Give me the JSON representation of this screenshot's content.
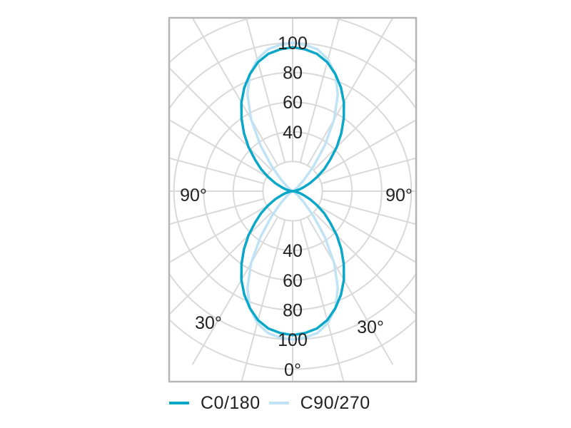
{
  "chart_data": {
    "type": "polar-line",
    "title": "",
    "radial_ticks": [
      "40",
      "60",
      "80",
      "100"
    ],
    "radial_max": 100,
    "angle_labels": {
      "bottom": "0°",
      "lower_left": "30°",
      "lower_right": "30°",
      "left": "90°",
      "right": "90°"
    },
    "angles_deg": [
      0,
      5,
      10,
      15,
      20,
      25,
      30,
      35,
      40,
      45,
      50,
      55,
      60,
      65,
      70,
      75,
      80,
      85,
      90
    ],
    "series": [
      {
        "name": "C0/180",
        "color": "#0aa7c8",
        "values": [
          97,
          96,
          94,
          90,
          84,
          77,
          69,
          60,
          51,
          42,
          33,
          26,
          19,
          13,
          8,
          5,
          2,
          1,
          0
        ]
      },
      {
        "name": "C90/270",
        "color": "#bfe3f5",
        "values": [
          100,
          99,
          97,
          92,
          84,
          72,
          56,
          38,
          22,
          11,
          5,
          2,
          1,
          0,
          0,
          0,
          0,
          0,
          0
        ]
      }
    ],
    "grid": true,
    "legend_position": "bottom"
  }
}
